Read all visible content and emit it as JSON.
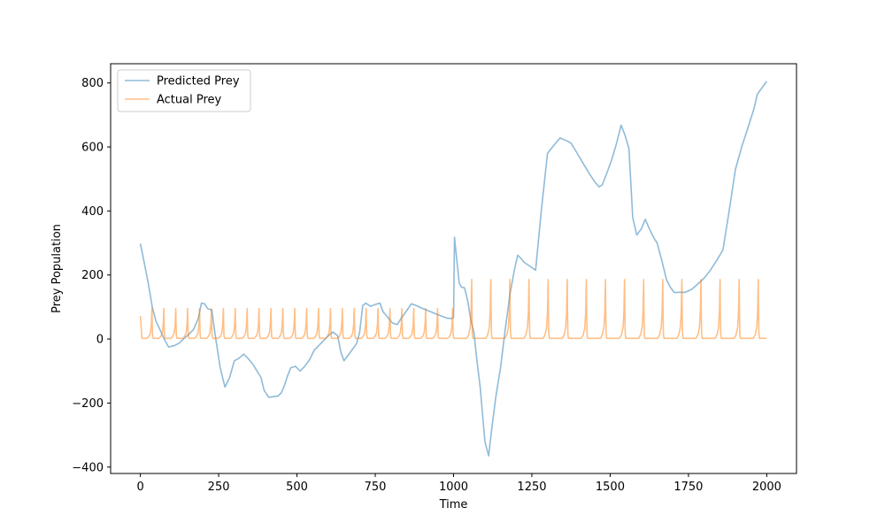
{
  "chart_data": {
    "type": "line",
    "title": "",
    "xlabel": "Time",
    "ylabel": "Prey Population",
    "xlim": [
      -95,
      2095
    ],
    "ylim": [
      -420,
      860
    ],
    "xticks": [
      0,
      250,
      500,
      750,
      1000,
      1250,
      1500,
      1750,
      2000
    ],
    "yticks": [
      -400,
      -200,
      0,
      200,
      400,
      600,
      800
    ],
    "grid": false,
    "legend_position": "top-left",
    "colors": {
      "predicted": "#1f77b4",
      "actual": "#ff7f0e"
    },
    "series": [
      {
        "name": "Predicted Prey",
        "points": [
          [
            0,
            298
          ],
          [
            12,
            240
          ],
          [
            25,
            175
          ],
          [
            38,
            100
          ],
          [
            50,
            55
          ],
          [
            60,
            35
          ],
          [
            75,
            2
          ],
          [
            90,
            -25
          ],
          [
            110,
            -20
          ],
          [
            125,
            -12
          ],
          [
            140,
            2
          ],
          [
            155,
            15
          ],
          [
            170,
            30
          ],
          [
            185,
            65
          ],
          [
            195,
            112
          ],
          [
            205,
            110
          ],
          [
            215,
            95
          ],
          [
            228,
            90
          ],
          [
            240,
            5
          ],
          [
            255,
            -90
          ],
          [
            270,
            -150
          ],
          [
            285,
            -120
          ],
          [
            300,
            -68
          ],
          [
            315,
            -60
          ],
          [
            330,
            -47
          ],
          [
            345,
            -62
          ],
          [
            360,
            -80
          ],
          [
            385,
            -120
          ],
          [
            395,
            -160
          ],
          [
            410,
            -182
          ],
          [
            425,
            -180
          ],
          [
            440,
            -178
          ],
          [
            450,
            -168
          ],
          [
            460,
            -145
          ],
          [
            470,
            -115
          ],
          [
            480,
            -90
          ],
          [
            495,
            -85
          ],
          [
            510,
            -100
          ],
          [
            525,
            -85
          ],
          [
            540,
            -65
          ],
          [
            555,
            -35
          ],
          [
            570,
            -20
          ],
          [
            585,
            -5
          ],
          [
            600,
            10
          ],
          [
            615,
            22
          ],
          [
            630,
            10
          ],
          [
            640,
            -40
          ],
          [
            650,
            -68
          ],
          [
            660,
            -55
          ],
          [
            675,
            -35
          ],
          [
            690,
            -15
          ],
          [
            700,
            20
          ],
          [
            710,
            105
          ],
          [
            720,
            112
          ],
          [
            735,
            102
          ],
          [
            750,
            108
          ],
          [
            765,
            112
          ],
          [
            775,
            85
          ],
          [
            790,
            68
          ],
          [
            805,
            50
          ],
          [
            820,
            45
          ],
          [
            835,
            68
          ],
          [
            850,
            88
          ],
          [
            865,
            110
          ],
          [
            880,
            105
          ],
          [
            900,
            96
          ],
          [
            920,
            88
          ],
          [
            940,
            80
          ],
          [
            960,
            72
          ],
          [
            980,
            65
          ],
          [
            995,
            64
          ],
          [
            1000,
            68
          ],
          [
            1003,
            318
          ],
          [
            1010,
            250
          ],
          [
            1018,
            175
          ],
          [
            1025,
            162
          ],
          [
            1035,
            160
          ],
          [
            1045,
            120
          ],
          [
            1055,
            60
          ],
          [
            1065,
            20
          ],
          [
            1075,
            -70
          ],
          [
            1085,
            -150
          ],
          [
            1100,
            -320
          ],
          [
            1112,
            -365
          ],
          [
            1122,
            -280
          ],
          [
            1135,
            -180
          ],
          [
            1150,
            -90
          ],
          [
            1165,
            30
          ],
          [
            1180,
            140
          ],
          [
            1195,
            220
          ],
          [
            1205,
            262
          ],
          [
            1215,
            252
          ],
          [
            1225,
            240
          ],
          [
            1240,
            230
          ],
          [
            1262,
            215
          ],
          [
            1280,
            400
          ],
          [
            1300,
            580
          ],
          [
            1320,
            605
          ],
          [
            1340,
            628
          ],
          [
            1360,
            620
          ],
          [
            1375,
            612
          ],
          [
            1390,
            588
          ],
          [
            1410,
            555
          ],
          [
            1430,
            522
          ],
          [
            1450,
            492
          ],
          [
            1465,
            475
          ],
          [
            1475,
            482
          ],
          [
            1490,
            520
          ],
          [
            1505,
            560
          ],
          [
            1520,
            610
          ],
          [
            1535,
            668
          ],
          [
            1548,
            635
          ],
          [
            1560,
            595
          ],
          [
            1572,
            380
          ],
          [
            1585,
            325
          ],
          [
            1600,
            345
          ],
          [
            1612,
            374
          ],
          [
            1625,
            345
          ],
          [
            1640,
            315
          ],
          [
            1650,
            300
          ],
          [
            1665,
            245
          ],
          [
            1680,
            185
          ],
          [
            1692,
            162
          ],
          [
            1705,
            145
          ],
          [
            1720,
            146
          ],
          [
            1740,
            146
          ],
          [
            1760,
            155
          ],
          [
            1780,
            172
          ],
          [
            1800,
            190
          ],
          [
            1820,
            215
          ],
          [
            1840,
            245
          ],
          [
            1860,
            278
          ],
          [
            1880,
            400
          ],
          [
            1900,
            530
          ],
          [
            1920,
            600
          ],
          [
            1940,
            660
          ],
          [
            1960,
            722
          ],
          [
            1970,
            765
          ],
          [
            1985,
            785
          ],
          [
            2000,
            805
          ]
        ]
      },
      {
        "name": "Actual Prey",
        "generator": "spikes",
        "x_start": 0,
        "x_end": 2000,
        "start_value": 72,
        "baseline": 2,
        "spikes": [
          {
            "x": 37,
            "peak": 95
          },
          {
            "x": 75,
            "peak": 95
          },
          {
            "x": 113,
            "peak": 95
          },
          {
            "x": 151,
            "peak": 95
          },
          {
            "x": 189,
            "peak": 95
          },
          {
            "x": 227,
            "peak": 95
          },
          {
            "x": 265,
            "peak": 95
          },
          {
            "x": 303,
            "peak": 95
          },
          {
            "x": 341,
            "peak": 95
          },
          {
            "x": 379,
            "peak": 95
          },
          {
            "x": 417,
            "peak": 95
          },
          {
            "x": 455,
            "peak": 95
          },
          {
            "x": 493,
            "peak": 95
          },
          {
            "x": 531,
            "peak": 95
          },
          {
            "x": 569,
            "peak": 95
          },
          {
            "x": 607,
            "peak": 95
          },
          {
            "x": 645,
            "peak": 95
          },
          {
            "x": 683,
            "peak": 95
          },
          {
            "x": 721,
            "peak": 95
          },
          {
            "x": 759,
            "peak": 95
          },
          {
            "x": 797,
            "peak": 95
          },
          {
            "x": 835,
            "peak": 95
          },
          {
            "x": 873,
            "peak": 95
          },
          {
            "x": 911,
            "peak": 95
          },
          {
            "x": 949,
            "peak": 95
          },
          {
            "x": 997,
            "peak": 95
          },
          {
            "x": 1058,
            "peak": 186
          },
          {
            "x": 1119,
            "peak": 186
          },
          {
            "x": 1180,
            "peak": 186
          },
          {
            "x": 1241,
            "peak": 186
          },
          {
            "x": 1302,
            "peak": 186
          },
          {
            "x": 1363,
            "peak": 186
          },
          {
            "x": 1424,
            "peak": 186
          },
          {
            "x": 1485,
            "peak": 186
          },
          {
            "x": 1546,
            "peak": 186
          },
          {
            "x": 1607,
            "peak": 186
          },
          {
            "x": 1668,
            "peak": 186
          },
          {
            "x": 1729,
            "peak": 186
          },
          {
            "x": 1790,
            "peak": 186
          },
          {
            "x": 1851,
            "peak": 186
          },
          {
            "x": 1912,
            "peak": 186
          },
          {
            "x": 1973,
            "peak": 186
          }
        ]
      }
    ]
  }
}
